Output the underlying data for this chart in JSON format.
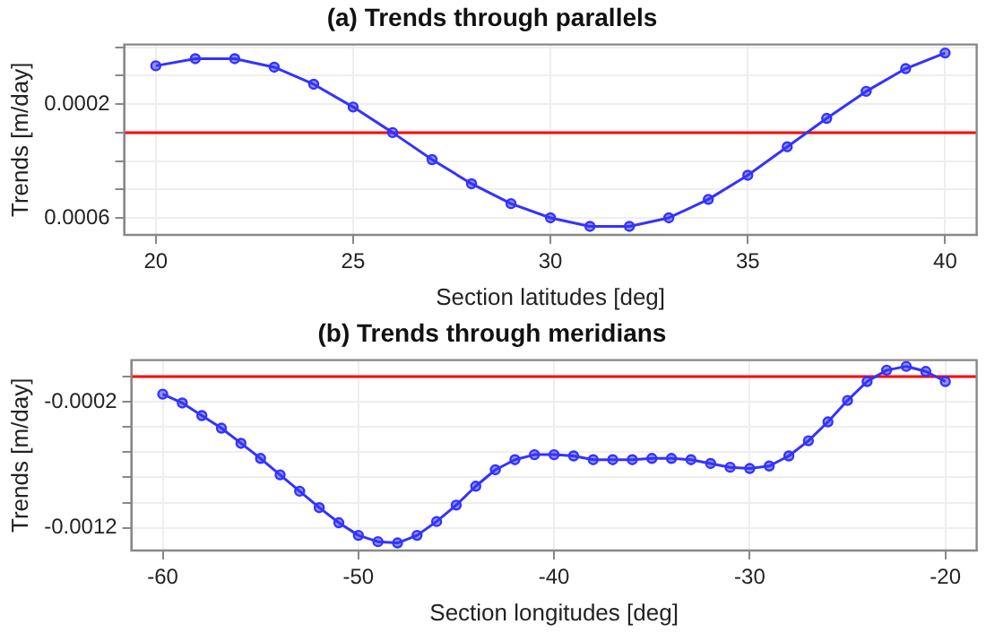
{
  "chart_data": [
    {
      "type": "line",
      "title": "(a) Trends through parallels",
      "xlabel": "Section latitudes [deg]",
      "ylabel": "Trends [m/day]",
      "x": [
        20,
        21,
        22,
        23,
        24,
        25,
        26,
        27,
        28,
        29,
        30,
        31,
        32,
        33,
        34,
        35,
        36,
        37,
        38,
        39,
        40
      ],
      "series": [
        {
          "color": "#3333ff",
          "values": [
            0.00047,
            0.00052,
            0.00052,
            0.00046,
            0.00034,
            0.00018,
            0,
            -0.00019,
            -0.00036,
            -0.0005,
            -0.0006,
            -0.00066,
            -0.00066,
            -0.0006,
            -0.00047,
            -0.0003,
            -0.0001,
            0.0001,
            0.00029,
            0.00045,
            0.00056
          ]
        }
      ],
      "xlim": [
        19.2,
        40.8
      ],
      "xticks": [
        20,
        25,
        30,
        35,
        40
      ],
      "ylim": [
        -0.00072,
        0.00062
      ],
      "yticks": [
        {
          "value": -0.0006,
          "label": "0.0006"
        },
        {
          "value": -0.0004,
          "label": null
        },
        {
          "value": -0.0002,
          "label": null
        },
        {
          "value": 0,
          "label": null
        },
        {
          "value": 0.0002,
          "label": "0.0002"
        },
        {
          "value": 0.0004,
          "label": null
        },
        {
          "value": 0.0006,
          "label": null
        }
      ],
      "ref_lines": [
        {
          "axis": "y",
          "value": 0,
          "color": "#ff0000"
        }
      ],
      "grid": true,
      "legend": false,
      "marker": "circle",
      "line_style": "solid"
    },
    {
      "type": "line",
      "title": "(b) Trends through meridians",
      "xlabel": "Section longitudes [deg]",
      "ylabel": "Trends [m/day]",
      "x": [
        -60,
        -59,
        -58,
        -57,
        -56,
        -55,
        -54,
        -53,
        -52,
        -51,
        -50,
        -49,
        -48,
        -47,
        -46,
        -45,
        -44,
        -43,
        -42,
        -41,
        -40,
        -39,
        -38,
        -37,
        -36,
        -35,
        -34,
        -33,
        -32,
        -31,
        -30,
        -29,
        -28,
        -27,
        -26,
        -25,
        -24,
        -23,
        -22,
        -21,
        -20
      ],
      "series": [
        {
          "color": "#3333ff",
          "values": [
            -0.00014,
            -0.00021,
            -0.00031,
            -0.00041,
            -0.00053,
            -0.00065,
            -0.00078,
            -0.00091,
            -0.00104,
            -0.00116,
            -0.00126,
            -0.00131,
            -0.00132,
            -0.00126,
            -0.00115,
            -0.00102,
            -0.00087,
            -0.00074,
            -0.00066,
            -0.00062,
            -0.00062,
            -0.00063,
            -0.00066,
            -0.00066,
            -0.00066,
            -0.00065,
            -0.00065,
            -0.00066,
            -0.00069,
            -0.00072,
            -0.00073,
            -0.00071,
            -0.00063,
            -0.00051,
            -0.00036,
            -0.00019,
            -4e-05,
            5e-05,
            8e-05,
            4e-05,
            -4e-05
          ]
        }
      ],
      "xlim": [
        -61.6,
        -18.4
      ],
      "xticks": [
        -60,
        -50,
        -40,
        -30,
        -20
      ],
      "ylim": [
        -0.00138,
        0.00013
      ],
      "yticks": [
        {
          "value": -0.0012,
          "label": "-0.0012"
        },
        {
          "value": -0.001,
          "label": null
        },
        {
          "value": -0.0008,
          "label": null
        },
        {
          "value": -0.0006,
          "label": null
        },
        {
          "value": -0.0004,
          "label": null
        },
        {
          "value": -0.0002,
          "label": "-0.0002"
        },
        {
          "value": 0,
          "label": null
        }
      ],
      "ref_lines": [
        {
          "axis": "y",
          "value": 0,
          "color": "#ff0000"
        }
      ],
      "grid": true,
      "legend": false,
      "marker": "circle",
      "line_style": "solid"
    }
  ]
}
